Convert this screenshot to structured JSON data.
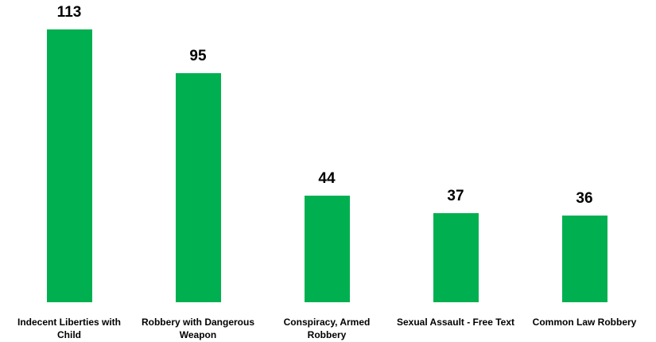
{
  "chart_data": {
    "type": "bar",
    "categories": [
      "Indecent Liberties with Child",
      "Robbery with Dangerous Weapon",
      "Conspiracy, Armed Robbery",
      "Sexual Assault - Free Text",
      "Common Law Robbery"
    ],
    "values": [
      113,
      95,
      44,
      37,
      36
    ],
    "color": "#00b050"
  }
}
